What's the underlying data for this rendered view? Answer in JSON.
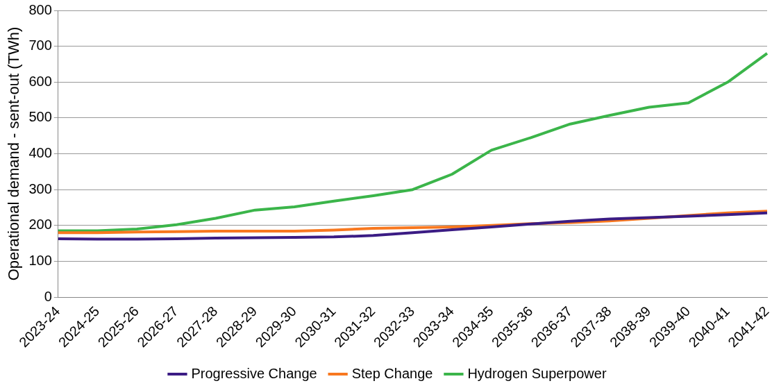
{
  "chart_data": {
    "type": "line",
    "ylabel": "Operational demand - sent-out (TWh)",
    "categories": [
      "2023-24",
      "2024-25",
      "2025-26",
      "2026-27",
      "2027-28",
      "2028-29",
      "2029-30",
      "2030-31",
      "2031-32",
      "2032-33",
      "2033-34",
      "2034-35",
      "2035-36",
      "2036-37",
      "2037-38",
      "2038-39",
      "2039-40",
      "2040-41",
      "2041-42"
    ],
    "series": [
      {
        "name": "Progressive Change",
        "color": "#3b1c84",
        "values": [
          163,
          162,
          162,
          163,
          165,
          166,
          167,
          168,
          172,
          180,
          188,
          196,
          204,
          212,
          218,
          222,
          226,
          230,
          235
        ]
      },
      {
        "name": "Step Change",
        "color": "#f8781f",
        "values": [
          180,
          180,
          182,
          183,
          184,
          184,
          184,
          187,
          192,
          194,
          196,
          200,
          205,
          208,
          213,
          220,
          228,
          235,
          240
        ]
      },
      {
        "name": "Hydrogen Superpower",
        "color": "#3bb54a",
        "values": [
          185,
          185,
          190,
          202,
          220,
          243,
          252,
          268,
          283,
          300,
          343,
          410,
          445,
          483,
          507,
          530,
          542,
          600,
          680
        ]
      }
    ],
    "ylim": [
      0,
      800
    ],
    "yticks": [
      0,
      100,
      200,
      300,
      400,
      500,
      600,
      700,
      800
    ],
    "grid": "y",
    "legend": "bottom",
    "marker": "none",
    "line_style": "solid"
  }
}
